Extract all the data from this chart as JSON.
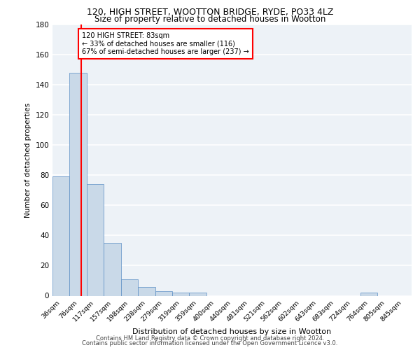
{
  "title1": "120, HIGH STREET, WOOTTON BRIDGE, RYDE, PO33 4LZ",
  "title2": "Size of property relative to detached houses in Wootton",
  "xlabel": "Distribution of detached houses by size in Wootton",
  "ylabel": "Number of detached properties",
  "bin_labels": [
    "36sqm",
    "76sqm",
    "117sqm",
    "157sqm",
    "198sqm",
    "238sqm",
    "279sqm",
    "319sqm",
    "359sqm",
    "400sqm",
    "440sqm",
    "481sqm",
    "521sqm",
    "562sqm",
    "602sqm",
    "643sqm",
    "683sqm",
    "724sqm",
    "764sqm",
    "805sqm",
    "845sqm"
  ],
  "bar_heights": [
    79,
    148,
    74,
    35,
    11,
    6,
    3,
    2,
    2,
    0,
    0,
    0,
    0,
    0,
    0,
    0,
    0,
    0,
    2,
    0,
    0
  ],
  "bar_color": "#c9d9e8",
  "bar_edge_color": "#5b8ec4",
  "annotation_text": "120 HIGH STREET: 83sqm\n← 33% of detached houses are smaller (116)\n67% of semi-detached houses are larger (237) →",
  "annotation_box_color": "white",
  "annotation_box_edge": "red",
  "ylim": [
    0,
    180
  ],
  "yticks": [
    0,
    20,
    40,
    60,
    80,
    100,
    120,
    140,
    160,
    180
  ],
  "footer1": "Contains HM Land Registry data © Crown copyright and database right 2024.",
  "footer2": "Contains public sector information licensed under the Open Government Licence v3.0.",
  "bg_color": "#edf2f7",
  "grid_color": "white",
  "red_line_x": 1.17
}
